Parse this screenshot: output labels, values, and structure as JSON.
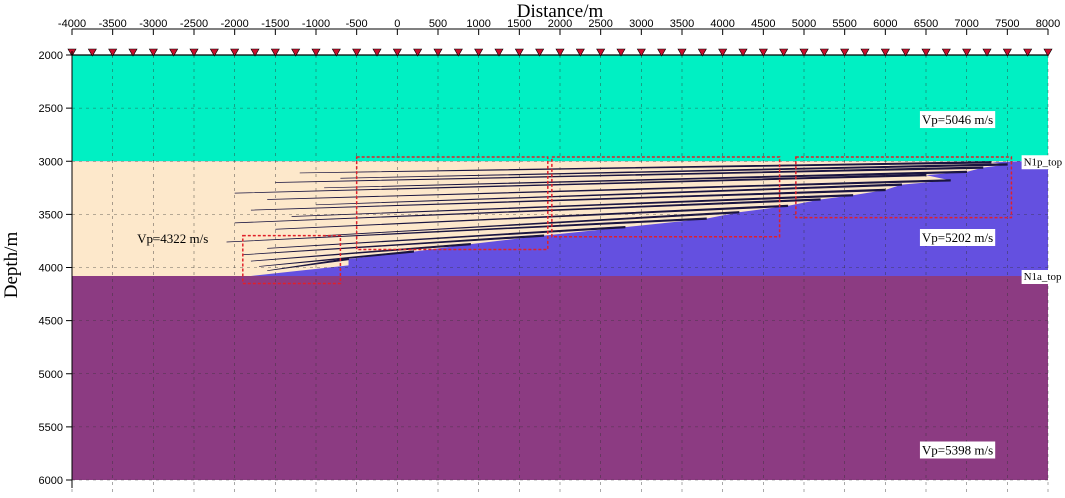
{
  "chart_data": {
    "type": "velocity_model_section",
    "xlabel": "Distance/m",
    "ylabel": "Depth/m",
    "xlim": [
      -4000,
      8000
    ],
    "ylim": [
      2000,
      6000
    ],
    "x_ticks": [
      -4000,
      -3500,
      -3000,
      -2500,
      -2000,
      -1500,
      -1000,
      -500,
      0,
      500,
      1000,
      1500,
      2000,
      2500,
      3000,
      3500,
      4000,
      4500,
      5000,
      5500,
      6000,
      6500,
      7000,
      7500,
      8000
    ],
    "y_ticks": [
      2000,
      2500,
      3000,
      3500,
      4000,
      4500,
      5000,
      5500,
      6000
    ],
    "grid": "dashed",
    "layers": [
      {
        "name": "upper",
        "top_depth": 2000,
        "bottom_depth": 3000,
        "color": "#00f0c3",
        "label": "Vp=5046 m/s",
        "label_x": 6450,
        "label_y": 2650
      },
      {
        "name": "middle",
        "top_depth": 3000,
        "bottom_depth": 4080,
        "color": "#6450e0",
        "label": "Vp=5202 m/s",
        "label_x": 6450,
        "label_y": 3760
      },
      {
        "name": "lower",
        "top_depth": 4080,
        "bottom_depth": 6000,
        "color": "#8c3b82",
        "label": "Vp=5398 m/s",
        "label_x": 6450,
        "label_y": 5760
      }
    ],
    "sand_region": {
      "color": "#fde8cb",
      "label": "Vp=4322 m/s",
      "label_x": -3200,
      "label_y": 3770,
      "top_depth": 3000,
      "bottom_depth": 4080
    },
    "horizon_labels": [
      {
        "text": "N1p_top",
        "x": 7700,
        "y": 3000
      },
      {
        "text": "N1a_top",
        "x": 7700,
        "y": 4080
      }
    ],
    "wedge_lines": [
      {
        "x_start": -1200,
        "x_end": 7300,
        "depth_start": 3110,
        "depth_end": 3010
      },
      {
        "x_start": -700,
        "x_end": 7500,
        "depth_start": 3160,
        "depth_end": 3030
      },
      {
        "x_start": -1500,
        "x_end": 7200,
        "depth_start": 3200,
        "depth_end": 3060
      },
      {
        "x_start": -900,
        "x_end": 7000,
        "depth_start": 3250,
        "depth_end": 3100
      },
      {
        "x_start": -2000,
        "x_end": 6500,
        "depth_start": 3300,
        "depth_end": 3130
      },
      {
        "x_start": -1600,
        "x_end": 6800,
        "depth_start": 3360,
        "depth_end": 3180
      },
      {
        "x_start": -1000,
        "x_end": 6200,
        "depth_start": 3410,
        "depth_end": 3220
      },
      {
        "x_start": -1800,
        "x_end": 6000,
        "depth_start": 3460,
        "depth_end": 3270
      },
      {
        "x_start": -1300,
        "x_end": 5600,
        "depth_start": 3520,
        "depth_end": 3320
      },
      {
        "x_start": -2000,
        "x_end": 5200,
        "depth_start": 3580,
        "depth_end": 3360
      },
      {
        "x_start": -1500,
        "x_end": 4800,
        "depth_start": 3640,
        "depth_end": 3420
      },
      {
        "x_start": -900,
        "x_end": 4200,
        "depth_start": 3700,
        "depth_end": 3480
      },
      {
        "x_start": -2100,
        "x_end": 3800,
        "depth_start": 3760,
        "depth_end": 3540
      },
      {
        "x_start": -1600,
        "x_end": 2800,
        "depth_start": 3820,
        "depth_end": 3620
      },
      {
        "x_start": -1900,
        "x_end": 1800,
        "depth_start": 3880,
        "depth_end": 3700
      },
      {
        "x_start": -1800,
        "x_end": 900,
        "depth_start": 3940,
        "depth_end": 3780
      },
      {
        "x_start": -1700,
        "x_end": 200,
        "depth_start": 3990,
        "depth_end": 3850
      },
      {
        "x_start": -1600,
        "x_end": -600,
        "depth_start": 4030,
        "depth_end": 3920
      }
    ],
    "dashed_boxes": [
      {
        "x0": -1900,
        "x1": -700,
        "y0": 3700,
        "y1": 4150
      },
      {
        "x0": -500,
        "x1": 1850,
        "y0": 2960,
        "y1": 3830
      },
      {
        "x0": 1900,
        "x1": 4700,
        "y0": 2960,
        "y1": 3710
      },
      {
        "x0": 4900,
        "x1": 7550,
        "y0": 2960,
        "y1": 3530
      }
    ],
    "receivers": {
      "start": -4000,
      "end": 8000,
      "spacing": 250,
      "depth": 2000,
      "color": "#c8102e"
    }
  }
}
